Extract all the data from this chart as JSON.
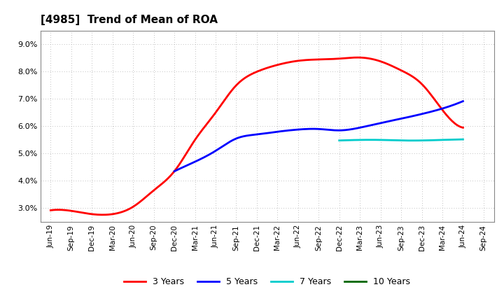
{
  "title": "[4985]  Trend of Mean of ROA",
  "title_fontsize": 11,
  "background_color": "#ffffff",
  "plot_bg_color": "#ffffff",
  "grid_color": "#aaaaaa",
  "ylim": [
    0.025,
    0.095
  ],
  "yticks": [
    0.03,
    0.04,
    0.05,
    0.06,
    0.07,
    0.08,
    0.09
  ],
  "legend_labels": [
    "3 Years",
    "5 Years",
    "7 Years",
    "10 Years"
  ],
  "legend_colors": [
    "#ff0000",
    "#0000ff",
    "#00cccc",
    "#006600"
  ],
  "series": {
    "3years": {
      "dates": [
        "Jun-19",
        "Sep-19",
        "Dec-19",
        "Mar-20",
        "Jun-20",
        "Sep-20",
        "Dec-20",
        "Mar-21",
        "Jun-21",
        "Sep-21",
        "Dec-21",
        "Mar-22",
        "Jun-22",
        "Sep-22",
        "Dec-22",
        "Mar-23",
        "Jun-23",
        "Sep-23",
        "Dec-23",
        "Mar-24",
        "Jun-24"
      ],
      "values": [
        0.0292,
        0.029,
        0.0278,
        0.0278,
        0.0305,
        0.0365,
        0.0435,
        0.055,
        0.065,
        0.075,
        0.08,
        0.0825,
        0.084,
        0.0845,
        0.0848,
        0.0852,
        0.0838,
        0.0805,
        0.0755,
        0.066,
        0.0595
      ],
      "color": "#ff0000",
      "linewidth": 2.0
    },
    "5years": {
      "dates": [
        "Dec-20",
        "Mar-21",
        "Jun-21",
        "Sep-21",
        "Dec-21",
        "Mar-22",
        "Jun-22",
        "Sep-22",
        "Dec-22",
        "Mar-23",
        "Jun-23",
        "Sep-23",
        "Dec-23",
        "Mar-24",
        "Jun-24"
      ],
      "values": [
        0.0435,
        0.047,
        0.051,
        0.0555,
        0.057,
        0.058,
        0.0588,
        0.059,
        0.0585,
        0.0595,
        0.0612,
        0.0628,
        0.0645,
        0.0665,
        0.0692
      ],
      "color": "#0000ff",
      "linewidth": 2.0
    },
    "7years": {
      "dates": [
        "Dec-22",
        "Mar-23",
        "Jun-23",
        "Sep-23",
        "Dec-23",
        "Mar-24",
        "Jun-24"
      ],
      "values": [
        0.0548,
        0.055,
        0.055,
        0.0548,
        0.0548,
        0.055,
        0.0552
      ],
      "color": "#00cccc",
      "linewidth": 2.0
    },
    "10years": {
      "dates": [],
      "values": [],
      "color": "#006600",
      "linewidth": 2.0
    }
  },
  "xtick_labels": [
    "Jun-19",
    "Sep-19",
    "Dec-19",
    "Mar-20",
    "Jun-20",
    "Sep-20",
    "Dec-20",
    "Mar-21",
    "Jun-21",
    "Sep-21",
    "Dec-21",
    "Mar-22",
    "Jun-22",
    "Sep-22",
    "Dec-22",
    "Mar-23",
    "Jun-23",
    "Sep-23",
    "Dec-23",
    "Mar-24",
    "Jun-24",
    "Sep-24"
  ]
}
